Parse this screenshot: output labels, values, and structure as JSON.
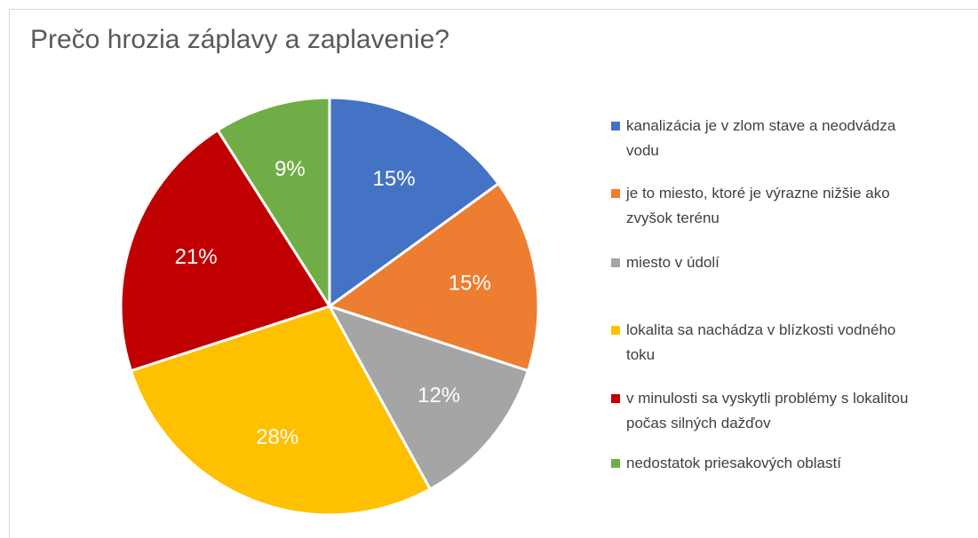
{
  "chart_data": {
    "type": "pie",
    "title": "Prečo hrozia záplavy a zaplavenie?",
    "categories": [
      "kanalizácia je v zlom stave a neodvádza vodu",
      "je to miesto, ktoré je výrazne nižšie ako zvyšok terénu",
      "miesto v údolí",
      "lokalita sa nachádza v blízkosti vodného toku",
      "v minulosti sa vyskytli problémy s lokalitou počas silných dažďov",
      "nedostatok priesakových oblastí"
    ],
    "values": [
      15,
      15,
      12,
      28,
      21,
      9
    ],
    "value_labels": [
      "15%",
      "15%",
      "12%",
      "28%",
      "21%",
      "9%"
    ],
    "colors": [
      "#4472c4",
      "#ed7d31",
      "#a5a5a5",
      "#ffc000",
      "#c00000",
      "#70ad47"
    ],
    "legend": "right"
  }
}
